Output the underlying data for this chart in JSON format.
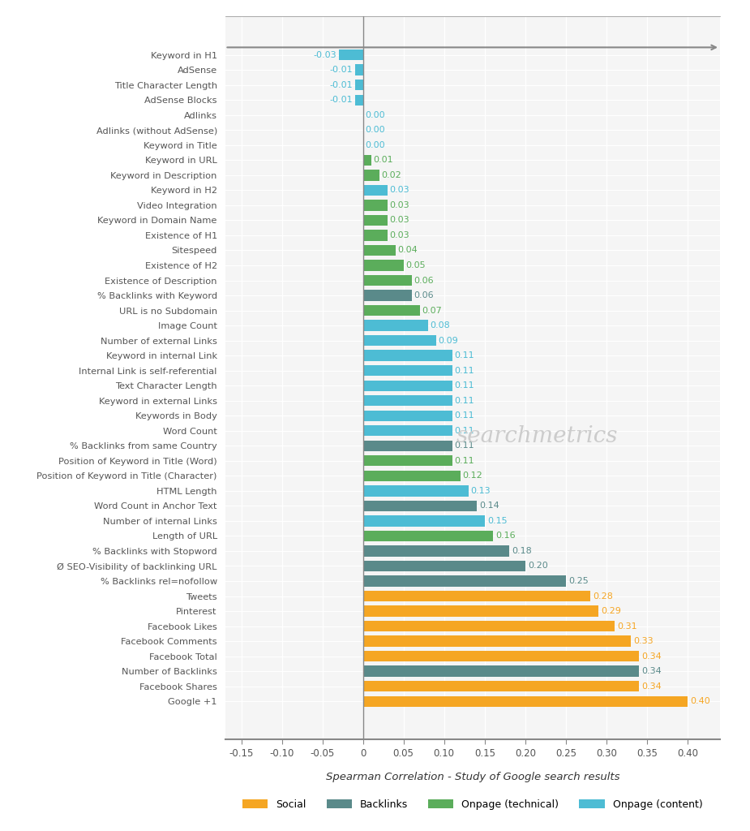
{
  "categories": [
    "Keyword in H1",
    "AdSense",
    "Title Character Length",
    "AdSense Blocks",
    "Adlinks",
    "Adlinks (without AdSense)",
    "Keyword in Title",
    "Keyword in URL",
    "Keyword in Description",
    "Keyword in H2",
    "Video Integration",
    "Keyword in Domain Name",
    "Existence of H1",
    "Sitespeed",
    "Existence of H2",
    "Existence of Description",
    "% Backlinks with Keyword",
    "URL is no Subdomain",
    "Image Count",
    "Number of external Links",
    "Keyword in internal Link",
    "Internal Link is self-referential",
    "Text Character Length",
    "Keyword in external Links",
    "Keywords in Body",
    "Word Count",
    "% Backlinks from same Country",
    "Position of Keyword in Title (Word)",
    "Position of Keyword in Title (Character)",
    "HTML Length",
    "Word Count in Anchor Text",
    "Number of internal Links",
    "Length of URL",
    "% Backlinks with Stopword",
    "Ø SEO-Visibility of backlinking URL",
    "% Backlinks rel=nofollow",
    "Tweets",
    "Pinterest",
    "Facebook Likes",
    "Facebook Comments",
    "Facebook Total",
    "Number of Backlinks",
    "Facebook Shares",
    "Google +1"
  ],
  "values": [
    -0.03,
    -0.01,
    -0.01,
    -0.01,
    0.0,
    0.0,
    0.0,
    0.01,
    0.02,
    0.03,
    0.03,
    0.03,
    0.03,
    0.04,
    0.05,
    0.06,
    0.06,
    0.07,
    0.08,
    0.09,
    0.11,
    0.11,
    0.11,
    0.11,
    0.11,
    0.11,
    0.11,
    0.11,
    0.12,
    0.13,
    0.14,
    0.15,
    0.16,
    0.18,
    0.2,
    0.25,
    0.28,
    0.29,
    0.31,
    0.33,
    0.34,
    0.34,
    0.34,
    0.4
  ],
  "bar_colors": [
    "#4DBCD4",
    "#4DBCD4",
    "#4DBCD4",
    "#4DBCD4",
    "#4DBCD4",
    "#4DBCD4",
    "#4DBCD4",
    "#5BAD5B",
    "#5BAD5B",
    "#4DBCD4",
    "#5BAD5B",
    "#5BAD5B",
    "#5BAD5B",
    "#5BAD5B",
    "#5BAD5B",
    "#5BAD5B",
    "#5A8A8A",
    "#5BAD5B",
    "#4DBCD4",
    "#4DBCD4",
    "#4DBCD4",
    "#4DBCD4",
    "#4DBCD4",
    "#4DBCD4",
    "#4DBCD4",
    "#4DBCD4",
    "#5A8A8A",
    "#5BAD5B",
    "#5BAD5B",
    "#4DBCD4",
    "#5A8A8A",
    "#4DBCD4",
    "#5BAD5B",
    "#5A8A8A",
    "#5A8A8A",
    "#5A8A8A",
    "#F5A623",
    "#F5A623",
    "#F5A623",
    "#F5A623",
    "#F5A623",
    "#5A8A8A",
    "#F5A623",
    "#F5A623"
  ],
  "value_colors": [
    "#4DBCD4",
    "#4DBCD4",
    "#4DBCD4",
    "#4DBCD4",
    "#4DBCD4",
    "#4DBCD4",
    "#4DBCD4",
    "#5BAD5B",
    "#5BAD5B",
    "#4DBCD4",
    "#5BAD5B",
    "#5BAD5B",
    "#5BAD5B",
    "#5BAD5B",
    "#5BAD5B",
    "#5BAD5B",
    "#5A8A8A",
    "#5BAD5B",
    "#4DBCD4",
    "#4DBCD4",
    "#4DBCD4",
    "#4DBCD4",
    "#4DBCD4",
    "#4DBCD4",
    "#4DBCD4",
    "#4DBCD4",
    "#5A8A8A",
    "#5BAD5B",
    "#5BAD5B",
    "#4DBCD4",
    "#5A8A8A",
    "#4DBCD4",
    "#5BAD5B",
    "#5A8A8A",
    "#5A8A8A",
    "#5A8A8A",
    "#F5A623",
    "#F5A623",
    "#F5A623",
    "#F5A623",
    "#F5A623",
    "#5A8A8A",
    "#F5A623",
    "#F5A623"
  ],
  "title": "Spearman Correlation - Study of Google search results",
  "legend_labels": [
    "Social",
    "Backlinks",
    "Onpage (technical)",
    "Onpage (content)"
  ],
  "legend_colors": [
    "#F5A623",
    "#5A8A8A",
    "#5BAD5B",
    "#4DBCD4"
  ],
  "xlim": [
    -0.17,
    0.44
  ],
  "xticks": [
    -0.15,
    -0.1,
    -0.05,
    0.0,
    0.05,
    0.1,
    0.15,
    0.2,
    0.25,
    0.3,
    0.35,
    0.4
  ],
  "xtick_labels": [
    "-0.15",
    "-0.10",
    "-0.05",
    "0",
    "0.05",
    "0.10",
    "0.15",
    "0.20",
    "0.25",
    "0.30",
    "0.35",
    "0.40"
  ],
  "background_color": "#FFFFFF",
  "plot_bg_color": "#F5F5F5",
  "bar_height": 0.72,
  "grid_color": "#FFFFFF",
  "label_fontsize": 8.2,
  "value_fontsize": 8.0,
  "title_fontsize": 9.5,
  "watermark_text": "searchmetrics",
  "watermark_color": "#CCCCCC"
}
